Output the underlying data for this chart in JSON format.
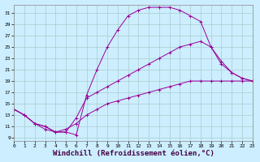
{
  "background_color": "#cceeff",
  "grid_color": "#aacccc",
  "line_color": "#990099",
  "xlabel": "Windchill (Refroidissement éolien,°C)",
  "xlabel_fontsize": 6.5,
  "ytick_values": [
    9,
    11,
    13,
    15,
    17,
    19,
    21,
    23,
    25,
    27,
    29,
    31
  ],
  "xtick_values": [
    0,
    1,
    2,
    3,
    4,
    5,
    6,
    7,
    8,
    9,
    10,
    11,
    12,
    13,
    14,
    15,
    16,
    17,
    18,
    19,
    20,
    21,
    22,
    23
  ],
  "xlim": [
    0,
    23
  ],
  "ylim": [
    8.5,
    32.5
  ],
  "curve1_x": [
    0,
    1,
    2,
    3,
    4,
    5,
    6,
    7,
    8,
    9,
    10,
    11,
    12,
    13,
    14,
    15,
    16,
    17,
    18,
    19,
    20,
    21,
    22,
    23
  ],
  "curve1_y": [
    14.0,
    13.0,
    11.5,
    10.5,
    10.0,
    10.0,
    9.5,
    16.5,
    21.0,
    25.0,
    28.0,
    30.5,
    31.5,
    32.0,
    32.0,
    32.0,
    31.5,
    30.5,
    29.5,
    25.0,
    22.5,
    20.5,
    19.5,
    19.0
  ],
  "curve2_x": [
    0,
    1,
    2,
    3,
    4,
    5,
    6,
    7,
    8,
    9,
    10,
    11,
    12,
    13,
    14,
    15,
    16,
    17,
    18,
    19,
    20,
    21,
    22,
    23
  ],
  "curve2_y": [
    14.0,
    13.0,
    11.5,
    11.0,
    10.0,
    10.0,
    12.5,
    16.0,
    17.0,
    18.0,
    19.0,
    20.0,
    21.0,
    22.0,
    23.0,
    24.0,
    25.0,
    25.5,
    26.0,
    25.0,
    22.0,
    20.5,
    19.5,
    19.0
  ],
  "curve3_x": [
    0,
    1,
    2,
    3,
    4,
    5,
    6,
    7,
    8,
    9,
    10,
    11,
    12,
    13,
    14,
    15,
    16,
    17,
    18,
    19,
    20,
    21,
    22,
    23
  ],
  "curve3_y": [
    14.0,
    13.0,
    11.5,
    11.0,
    10.0,
    10.5,
    11.5,
    13.0,
    14.0,
    15.0,
    15.5,
    16.0,
    16.5,
    17.0,
    17.5,
    18.0,
    18.5,
    19.0,
    19.0,
    19.0,
    19.0,
    19.0,
    19.0,
    19.0
  ]
}
